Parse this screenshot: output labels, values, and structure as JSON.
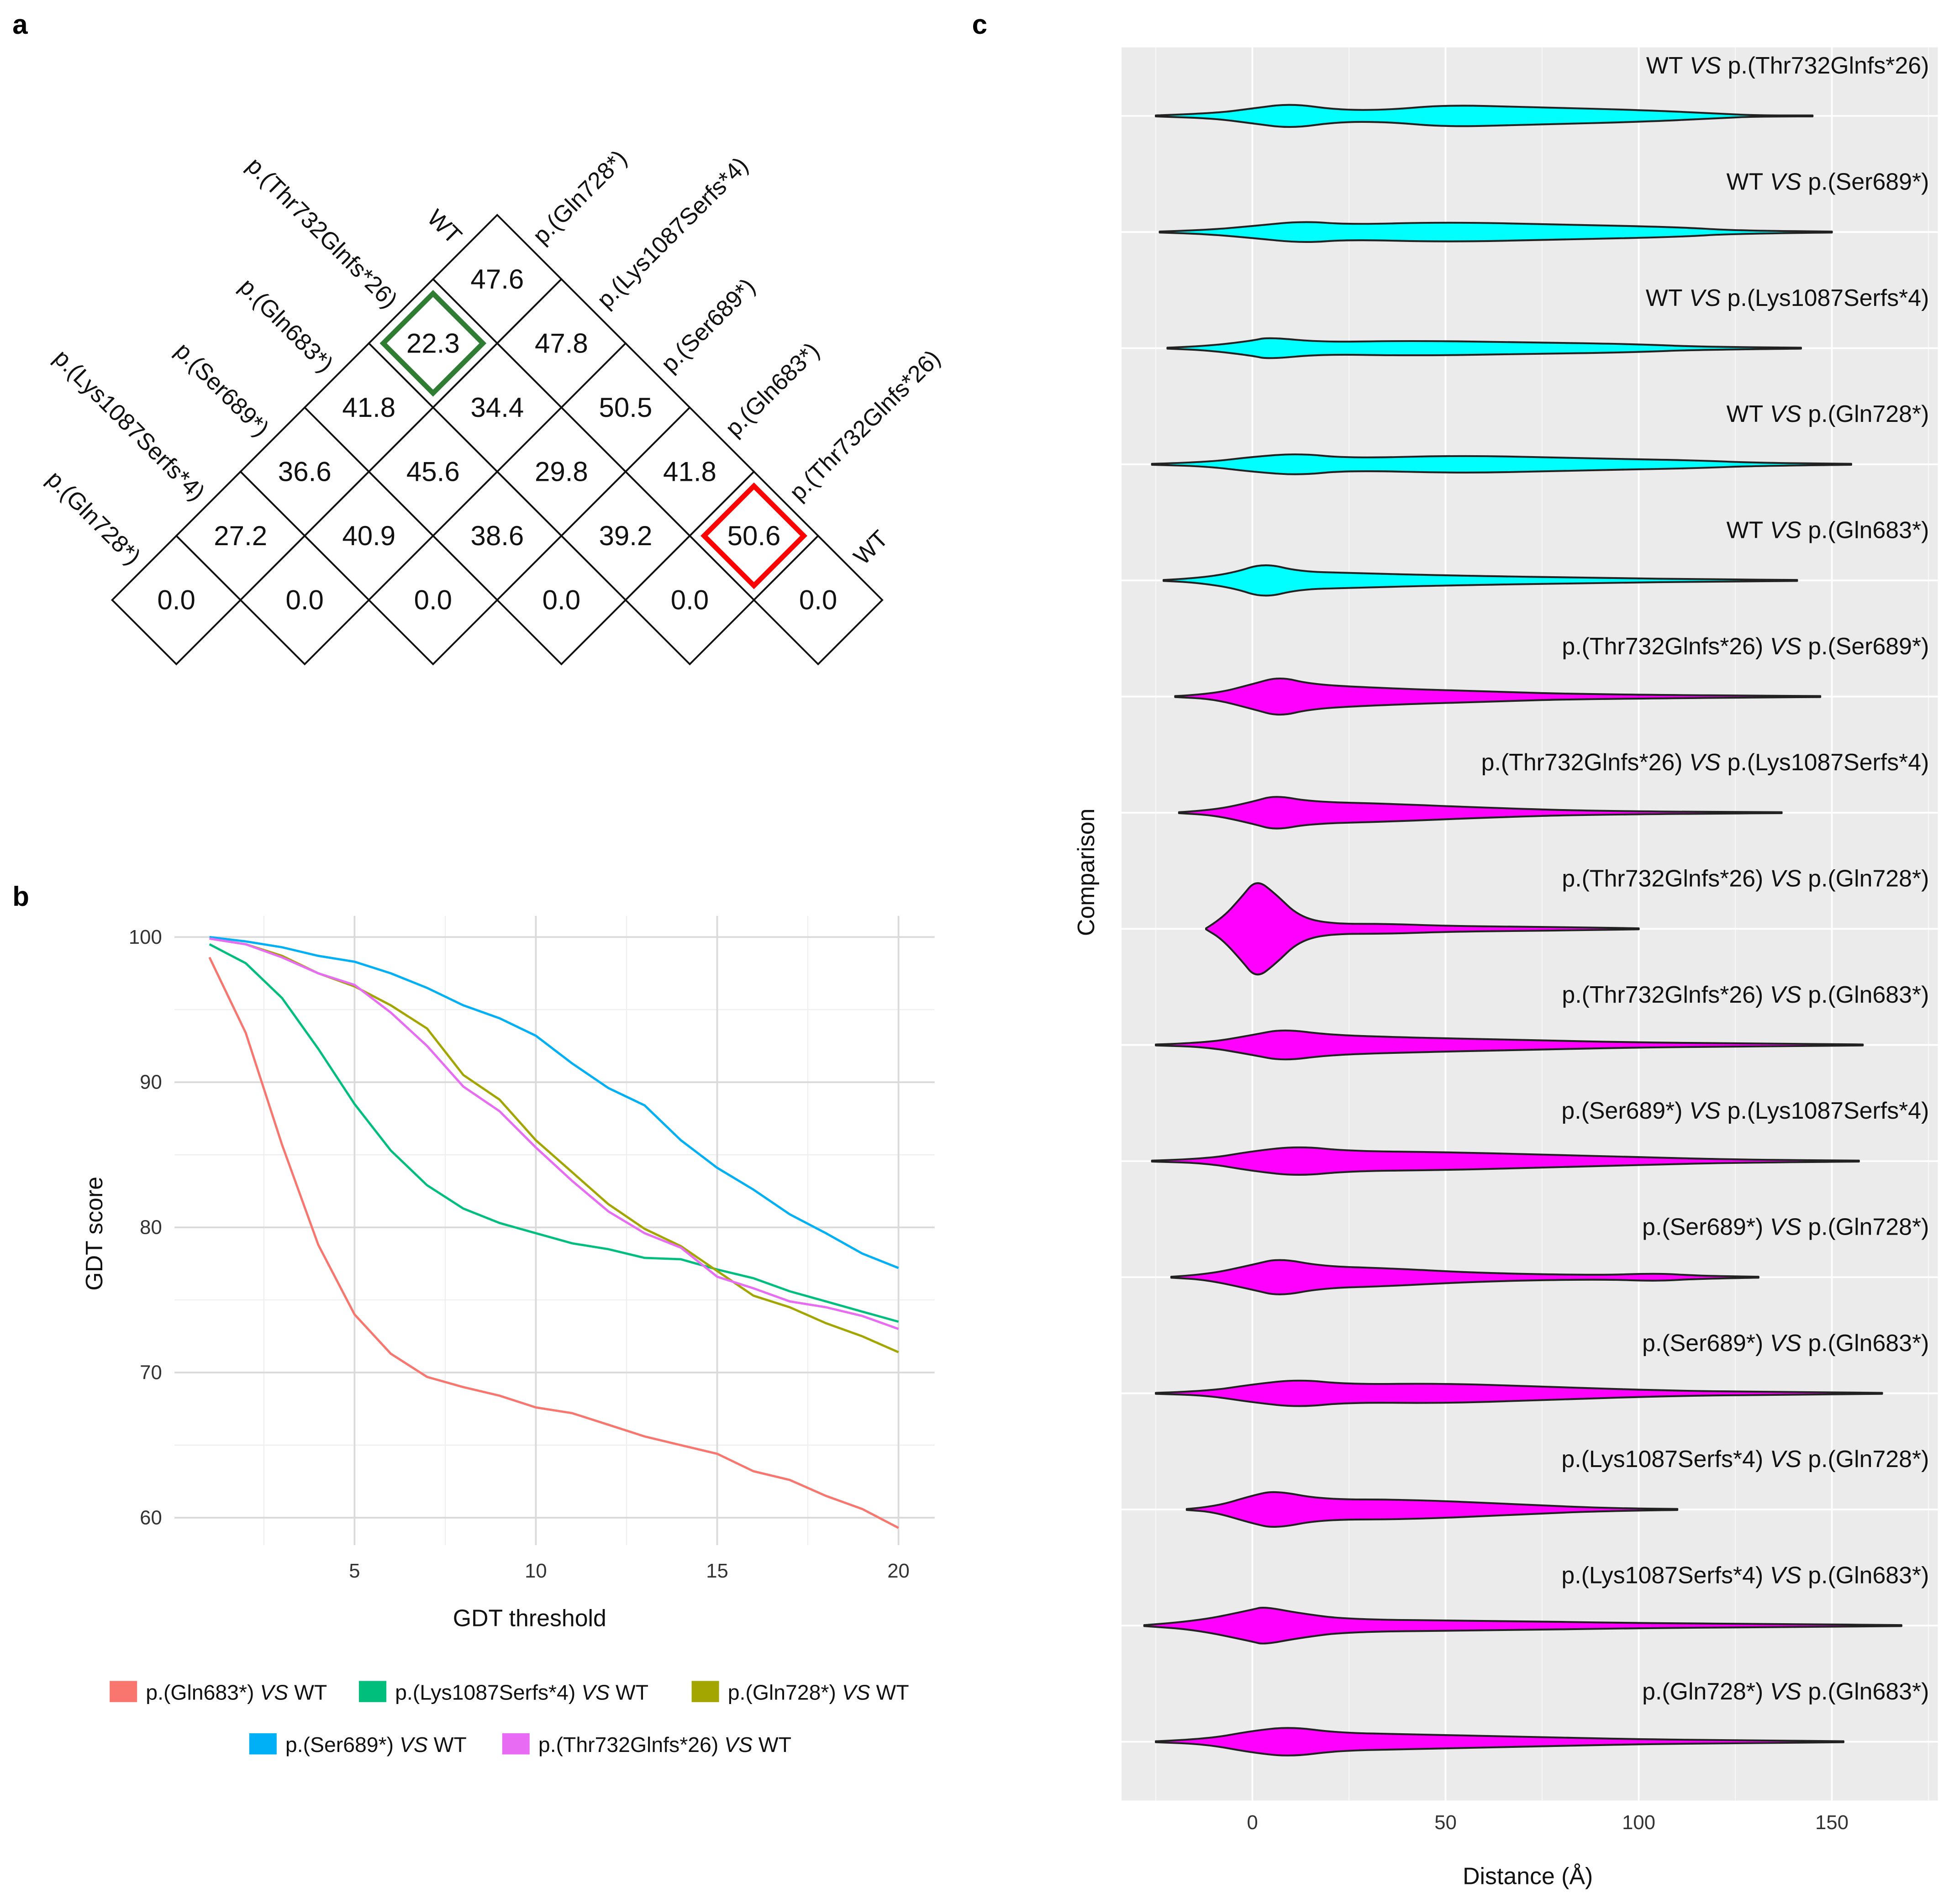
{
  "panel_labels": {
    "a": "a",
    "b": "b",
    "c": "c"
  },
  "chart_data": [
    {
      "type": "heatmap",
      "panel": "a",
      "layout": "triangular-diamond",
      "left_labels": [
        "WT",
        "p.(Thr732Glnfs*26)",
        "p.(Gln683*)",
        "p.(Ser689*)",
        "p.(Lys1087Serfs*4)",
        "p.(Gln728*)"
      ],
      "right_labels": [
        "p.(Gln728*)",
        "p.(Lys1087Serfs*4)",
        "p.(Ser689*)",
        "p.(Gln683*)",
        "p.(Thr732Glnfs*26)",
        "WT"
      ],
      "rows": [
        [
          "47.6"
        ],
        [
          "22.3",
          "47.8"
        ],
        [
          "41.8",
          "34.4",
          "50.5"
        ],
        [
          "36.6",
          "45.6",
          "29.8",
          "41.8"
        ],
        [
          "27.2",
          "40.9",
          "38.6",
          "39.2",
          "50.6"
        ],
        [
          "0.0",
          "0.0",
          "0.0",
          "0.0",
          "0.0",
          "0.0"
        ]
      ],
      "highlights": [
        {
          "row": 1,
          "col": 0,
          "color": "#2E7D32"
        },
        {
          "row": 4,
          "col": 4,
          "color": "#FF0000"
        }
      ]
    },
    {
      "type": "line",
      "panel": "b",
      "xlabel": "GDT threshold",
      "ylabel": "GDT score",
      "xlim": [
        0.5,
        21
      ],
      "ylim": [
        58.5,
        101.5
      ],
      "xticks": [
        "5",
        "10",
        "15",
        "20"
      ],
      "yticks": [
        "60",
        "70",
        "80",
        "90",
        "100"
      ],
      "grid": true,
      "legend_position": "bottom",
      "x": [
        1,
        2,
        3,
        4,
        5,
        6,
        7,
        8,
        9,
        10,
        11,
        12,
        13,
        14,
        15,
        16,
        17,
        18,
        19,
        20
      ],
      "series": [
        {
          "name": {
            "left": "p.(Gln683*)",
            "vs": "VS",
            "right": "WT"
          },
          "color": "#F8766D",
          "values": [
            98.6,
            93.4,
            85.7,
            78.8,
            74.0,
            71.3,
            69.7,
            69.0,
            68.4,
            67.6,
            67.2,
            66.4,
            65.6,
            65.0,
            64.4,
            63.2,
            62.6,
            61.5,
            60.6,
            59.3
          ]
        },
        {
          "name": {
            "left": "p.(Lys1087Serfs*4)",
            "vs": "VS",
            "right": "WT"
          },
          "color": "#00BF7D",
          "values": [
            99.5,
            98.2,
            95.8,
            92.3,
            88.5,
            85.3,
            82.9,
            81.3,
            80.3,
            79.6,
            78.9,
            78.5,
            77.9,
            77.8,
            77.1,
            76.5,
            75.6,
            74.9,
            74.2,
            73.5
          ]
        },
        {
          "name": {
            "left": "p.(Gln728*)",
            "vs": "VS",
            "right": "WT"
          },
          "color": "#A3A500",
          "values": [
            99.9,
            99.5,
            98.7,
            97.5,
            96.6,
            95.3,
            93.7,
            90.5,
            88.8,
            86.0,
            83.8,
            81.6,
            79.9,
            78.7,
            77.0,
            75.3,
            74.5,
            73.4,
            72.5,
            71.4
          ]
        },
        {
          "name": {
            "left": "p.(Ser689*)",
            "vs": "VS",
            "right": "WT"
          },
          "color": "#00B0F6",
          "values": [
            100.0,
            99.7,
            99.3,
            98.7,
            98.3,
            97.5,
            96.5,
            95.3,
            94.4,
            93.2,
            91.3,
            89.6,
            88.4,
            86.0,
            84.1,
            82.6,
            80.9,
            79.6,
            78.2,
            77.2
          ]
        },
        {
          "name": {
            "left": "p.(Thr732Glnfs*26)",
            "vs": "VS",
            "right": "WT"
          },
          "color": "#E76BF3",
          "values": [
            99.9,
            99.5,
            98.6,
            97.5,
            96.7,
            94.8,
            92.5,
            89.7,
            88.0,
            85.5,
            83.2,
            81.1,
            79.6,
            78.6,
            76.6,
            75.8,
            74.9,
            74.5,
            73.9,
            73.0
          ]
        }
      ]
    },
    {
      "type": "violin",
      "panel": "c",
      "xlabel": "Distance (Å)",
      "ylabel": "Comparison",
      "xlim": [
        -34,
        177
      ],
      "xticks": [
        "0",
        "50",
        "100",
        "150"
      ],
      "grid": true,
      "violins": [
        {
          "label": {
            "left": "WT",
            "vs": "VS",
            "right": "p.(Thr732Glnfs*26)"
          },
          "color": "#00FFFF",
          "density": [
            [
              -25,
              0.01
            ],
            [
              -10,
              0.05
            ],
            [
              0,
              0.15
            ],
            [
              10,
              0.25
            ],
            [
              22,
              0.12
            ],
            [
              35,
              0.12
            ],
            [
              50,
              0.22
            ],
            [
              70,
              0.18
            ],
            [
              100,
              0.12
            ],
            [
              120,
              0.05
            ],
            [
              130,
              0.01
            ],
            [
              145,
              0.01
            ]
          ]
        },
        {
          "label": {
            "left": "WT",
            "vs": "VS",
            "right": "p.(Ser689*)"
          },
          "color": "#00FFFF",
          "density": [
            [
              -24,
              0.01
            ],
            [
              -12,
              0.04
            ],
            [
              0,
              0.12
            ],
            [
              13,
              0.22
            ],
            [
              25,
              0.15
            ],
            [
              50,
              0.2
            ],
            [
              80,
              0.15
            ],
            [
              110,
              0.1
            ],
            [
              125,
              0.03
            ],
            [
              150,
              0.01
            ]
          ]
        },
        {
          "label": {
            "left": "WT",
            "vs": "VS",
            "right": "p.(Lys1087Serfs*4)"
          },
          "color": "#00FFFF",
          "density": [
            [
              -22,
              0.01
            ],
            [
              -12,
              0.04
            ],
            [
              0,
              0.15
            ],
            [
              4,
              0.22
            ],
            [
              18,
              0.12
            ],
            [
              40,
              0.15
            ],
            [
              70,
              0.12
            ],
            [
              100,
              0.08
            ],
            [
              115,
              0.03
            ],
            [
              142,
              0.01
            ]
          ]
        },
        {
          "label": {
            "left": "WT",
            "vs": "VS",
            "right": "p.(Gln728*)"
          },
          "color": "#00FFFF",
          "density": [
            [
              -26,
              0.01
            ],
            [
              -12,
              0.04
            ],
            [
              0,
              0.15
            ],
            [
              12,
              0.22
            ],
            [
              25,
              0.12
            ],
            [
              55,
              0.18
            ],
            [
              85,
              0.12
            ],
            [
              115,
              0.08
            ],
            [
              130,
              0.03
            ],
            [
              155,
              0.01
            ]
          ]
        },
        {
          "label": {
            "left": "WT",
            "vs": "VS",
            "right": "p.(Gln683*)"
          },
          "color": "#00FFFF",
          "density": [
            [
              -23,
              0.01
            ],
            [
              -15,
              0.04
            ],
            [
              -5,
              0.15
            ],
            [
              3,
              0.35
            ],
            [
              12,
              0.18
            ],
            [
              25,
              0.15
            ],
            [
              50,
              0.1
            ],
            [
              90,
              0.05
            ],
            [
              120,
              0.02
            ],
            [
              141,
              0.01
            ]
          ]
        },
        {
          "label": {
            "left": "p.(Thr732Glnfs*26)",
            "vs": "VS",
            "right": "p.(Ser689*)"
          },
          "color": "#FF00FF",
          "density": [
            [
              -20,
              0.01
            ],
            [
              -10,
              0.05
            ],
            [
              0,
              0.25
            ],
            [
              7,
              0.4
            ],
            [
              15,
              0.25
            ],
            [
              30,
              0.18
            ],
            [
              60,
              0.1
            ],
            [
              90,
              0.04
            ],
            [
              147,
              0.01
            ]
          ]
        },
        {
          "label": {
            "left": "p.(Thr732Glnfs*26)",
            "vs": "VS",
            "right": "p.(Lys1087Serfs*4)"
          },
          "color": "#FF00FF",
          "density": [
            [
              -19,
              0.01
            ],
            [
              -10,
              0.05
            ],
            [
              0,
              0.22
            ],
            [
              6,
              0.35
            ],
            [
              15,
              0.22
            ],
            [
              35,
              0.18
            ],
            [
              60,
              0.1
            ],
            [
              90,
              0.03
            ],
            [
              137,
              0.01
            ]
          ]
        },
        {
          "label": {
            "left": "p.(Thr732Glnfs*26)",
            "vs": "VS",
            "right": "p.(Gln728*)"
          },
          "color": "#FF00FF",
          "density": [
            [
              -12,
              0.01
            ],
            [
              -8,
              0.2
            ],
            [
              -3,
              0.62
            ],
            [
              1,
              1
            ],
            [
              6,
              0.7
            ],
            [
              12,
              0.25
            ],
            [
              20,
              0.1
            ],
            [
              35,
              0.1
            ],
            [
              50,
              0.06
            ],
            [
              70,
              0.04
            ],
            [
              85,
              0.03
            ],
            [
              100,
              0.01
            ]
          ]
        },
        {
          "label": {
            "left": "p.(Thr732Glnfs*26)",
            "vs": "VS",
            "right": "p.(Gln683*)"
          },
          "color": "#FF00FF",
          "density": [
            [
              -25,
              0.01
            ],
            [
              -12,
              0.04
            ],
            [
              0,
              0.2
            ],
            [
              8,
              0.32
            ],
            [
              20,
              0.2
            ],
            [
              40,
              0.15
            ],
            [
              70,
              0.1
            ],
            [
              100,
              0.05
            ],
            [
              130,
              0.03
            ],
            [
              158,
              0.01
            ]
          ]
        },
        {
          "label": {
            "left": "p.(Ser689*)",
            "vs": "VS",
            "right": "p.(Lys1087Serfs*4)"
          },
          "color": "#FF00FF",
          "density": [
            [
              -26,
              0.01
            ],
            [
              -12,
              0.04
            ],
            [
              0,
              0.2
            ],
            [
              12,
              0.3
            ],
            [
              25,
              0.2
            ],
            [
              50,
              0.18
            ],
            [
              80,
              0.12
            ],
            [
              100,
              0.08
            ],
            [
              125,
              0.03
            ],
            [
              157,
              0.01
            ]
          ]
        },
        {
          "label": {
            "left": "p.(Ser689*)",
            "vs": "VS",
            "right": "p.(Gln728*)"
          },
          "color": "#FF00FF",
          "density": [
            [
              -21,
              0.01
            ],
            [
              -12,
              0.05
            ],
            [
              0,
              0.25
            ],
            [
              7,
              0.38
            ],
            [
              18,
              0.22
            ],
            [
              35,
              0.18
            ],
            [
              60,
              0.08
            ],
            [
              90,
              0.04
            ],
            [
              105,
              0.08
            ],
            [
              115,
              0.03
            ],
            [
              131,
              0.01
            ]
          ]
        },
        {
          "label": {
            "left": "p.(Ser689*)",
            "vs": "VS",
            "right": "p.(Gln683*)"
          },
          "color": "#FF00FF",
          "density": [
            [
              -25,
              0.01
            ],
            [
              -12,
              0.04
            ],
            [
              0,
              0.18
            ],
            [
              12,
              0.28
            ],
            [
              25,
              0.18
            ],
            [
              50,
              0.2
            ],
            [
              80,
              0.12
            ],
            [
              110,
              0.05
            ],
            [
              135,
              0.03
            ],
            [
              163,
              0.01
            ]
          ]
        },
        {
          "label": {
            "left": "p.(Lys1087Serfs*4)",
            "vs": "VS",
            "right": "p.(Gln728*)"
          },
          "color": "#FF00FF",
          "density": [
            [
              -17,
              0.01
            ],
            [
              -10,
              0.05
            ],
            [
              0,
              0.28
            ],
            [
              6,
              0.38
            ],
            [
              18,
              0.2
            ],
            [
              40,
              0.2
            ],
            [
              70,
              0.1
            ],
            [
              90,
              0.03
            ],
            [
              110,
              0.01
            ]
          ]
        },
        {
          "label": {
            "left": "p.(Lys1087Serfs*4)",
            "vs": "VS",
            "right": "p.(Gln683*)"
          },
          "color": "#FF00FF",
          "density": [
            [
              -28,
              0.01
            ],
            [
              -15,
              0.08
            ],
            [
              0,
              0.32
            ],
            [
              3,
              0.38
            ],
            [
              12,
              0.25
            ],
            [
              25,
              0.12
            ],
            [
              60,
              0.1
            ],
            [
              100,
              0.05
            ],
            [
              140,
              0.03
            ],
            [
              168,
              0.01
            ]
          ]
        },
        {
          "label": {
            "left": "p.(Gln728*)",
            "vs": "VS",
            "right": "p.(Gln683*)"
          },
          "color": "#FF00FF",
          "density": [
            [
              -25,
              0.01
            ],
            [
              -12,
              0.05
            ],
            [
              0,
              0.22
            ],
            [
              10,
              0.3
            ],
            [
              22,
              0.18
            ],
            [
              40,
              0.15
            ],
            [
              70,
              0.1
            ],
            [
              100,
              0.05
            ],
            [
              125,
              0.03
            ],
            [
              153,
              0.01
            ]
          ]
        }
      ]
    }
  ]
}
